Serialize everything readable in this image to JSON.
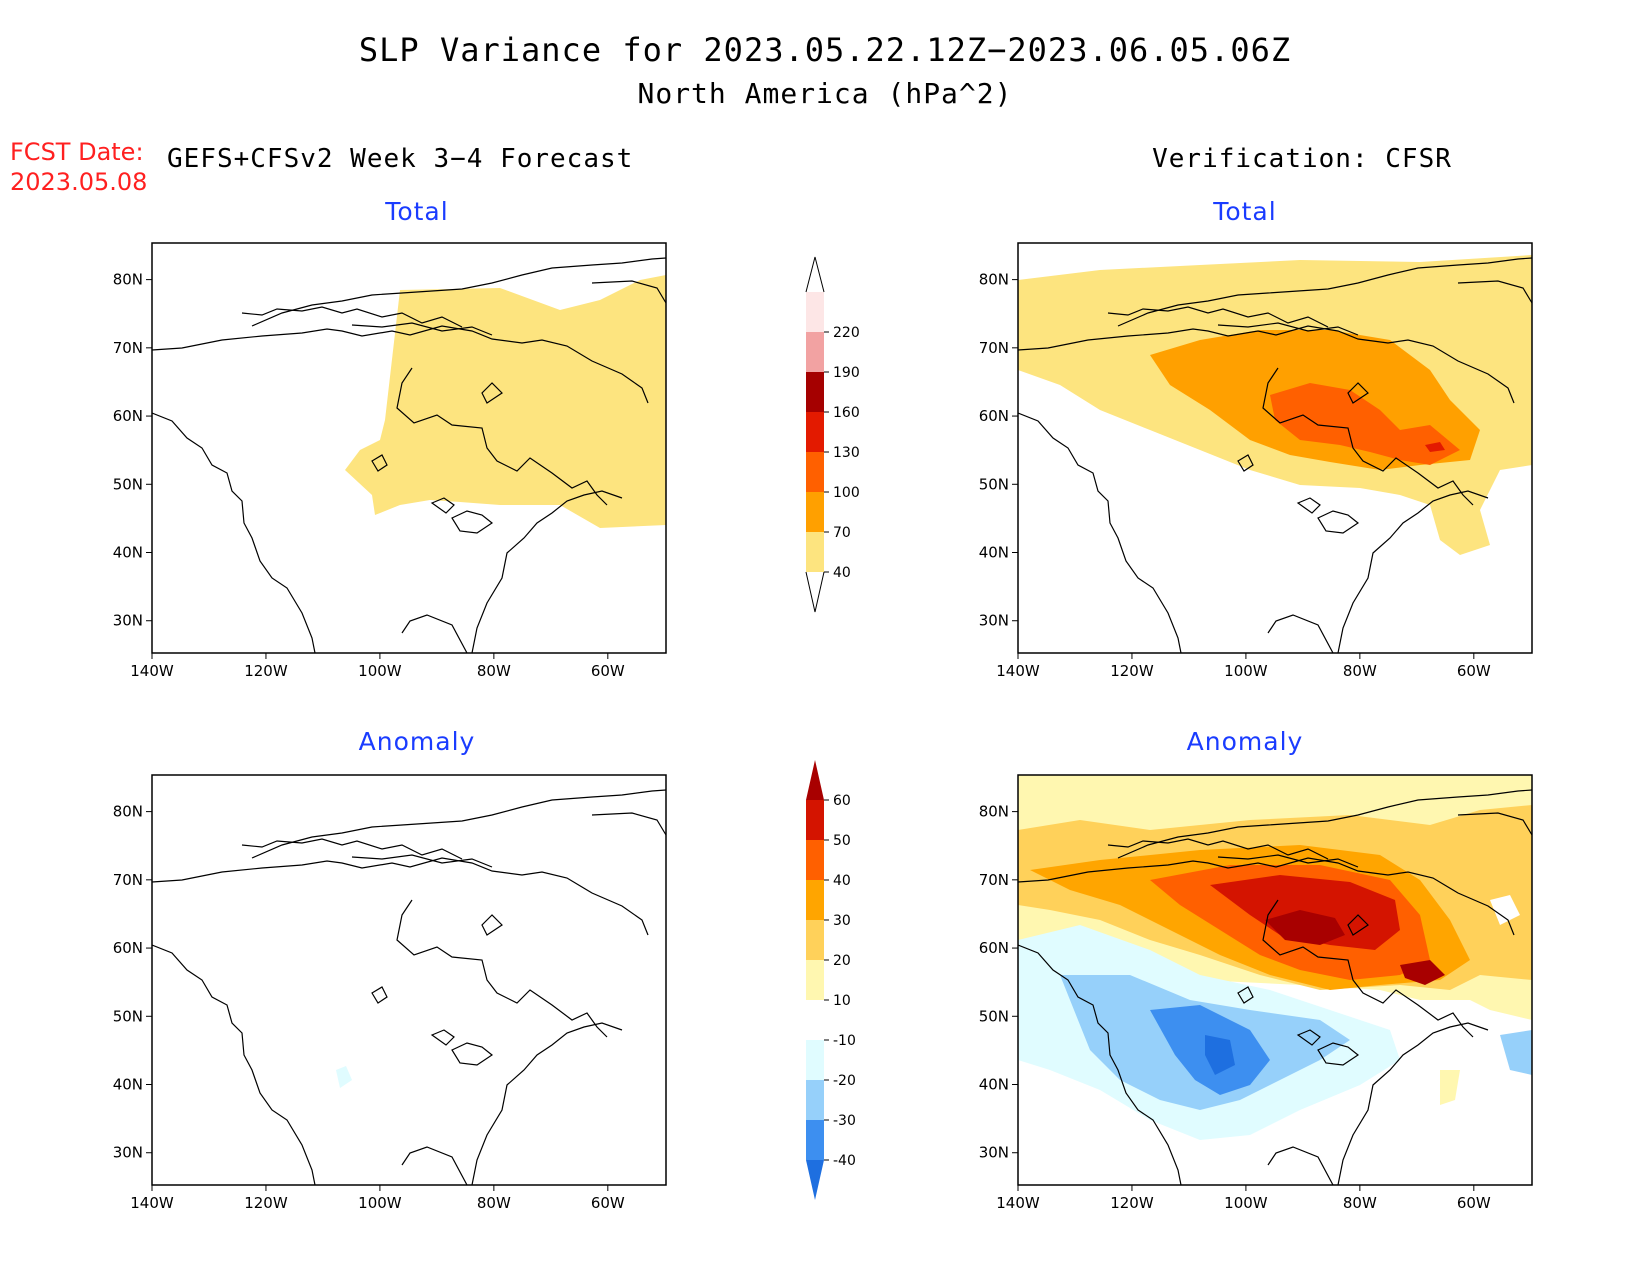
{
  "title": {
    "line1": "SLP Variance for 2023.05.22.12Z−2023.06.05.06Z",
    "line2": "North America (hPa^2)"
  },
  "fcst": {
    "label": "FCST Date:",
    "date": "2023.05.08"
  },
  "model_label": "GEFS+CFSv2 Week 3−4 Forecast",
  "verification_label": "Verification: CFSR",
  "panels": {
    "top_left": "Total",
    "top_right": "Total",
    "bottom_left": "Anomaly",
    "bottom_right": "Anomaly"
  },
  "axes": {
    "lat_ticks": [
      "80N",
      "70N",
      "60N",
      "50N",
      "40N",
      "30N"
    ],
    "lon_ticks": [
      "140W",
      "120W",
      "100W",
      "80W",
      "60W"
    ]
  },
  "total_colorbar": {
    "levels": [
      "40",
      "70",
      "100",
      "130",
      "160",
      "190",
      "220"
    ],
    "colors": [
      "#fde47f",
      "#ffa000",
      "#ff6000",
      "#e31a00",
      "#a50000",
      "#f2a2a2",
      "#fde6e6"
    ]
  },
  "anomaly_colorbar": {
    "levels": [
      "-40",
      "-30",
      "-20",
      "-10",
      "10",
      "20",
      "30",
      "40",
      "50",
      "60"
    ],
    "colors": [
      "#1e6fe0",
      "#3d8ff0",
      "#96d0fa",
      "#e0fcff",
      "#ffffff",
      "#fff7b0",
      "#ffd15a",
      "#ffa500",
      "#ff6000",
      "#d41400",
      "#a80000"
    ]
  }
}
